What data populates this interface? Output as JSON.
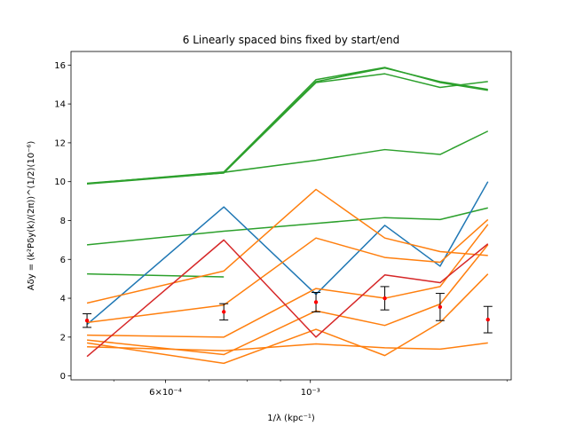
{
  "chart_data": {
    "type": "line",
    "title": "6 Linearly spaced bins fixed by start/end",
    "xlabel": "1/λ (kpc⁻¹)",
    "ylabel": "Aδy = (k²Pδy(k)/(2π))^(1/2)(10⁻⁶)",
    "xscale": "log",
    "xlim": [
      0.00043,
      0.00203
    ],
    "ylim": [
      -0.2,
      16.7
    ],
    "grid": false,
    "x": [
      0.000455,
      0.000737,
      0.00102,
      0.0013,
      0.00158,
      0.00187
    ],
    "x_ticks": [
      {
        "value": 0.0006,
        "label": "6×10⁻⁴"
      },
      {
        "value": 0.001,
        "label": "10⁻³"
      }
    ],
    "y_ticks": [
      0,
      2,
      4,
      6,
      8,
      10,
      12,
      14,
      16
    ],
    "series": [
      {
        "color": "#2ca02c",
        "values": [
          9.9,
          10.5,
          15.25,
          15.88,
          15.1,
          14.7
        ]
      },
      {
        "color": "#2ca02c",
        "values": [
          9.92,
          10.45,
          15.15,
          15.85,
          15.15,
          14.75
        ]
      },
      {
        "color": "#2ca02c",
        "values": [
          9.88,
          10.45,
          15.1,
          15.55,
          14.85,
          15.15
        ]
      },
      {
        "color": "#2ca02c",
        "values": [
          9.9,
          10.48,
          11.1,
          11.65,
          11.4,
          12.6
        ]
      },
      {
        "color": "#2ca02c",
        "values": [
          6.75,
          7.45,
          7.85,
          8.15,
          8.05,
          8.65
        ]
      },
      {
        "color": "#2ca02c",
        "values": [
          5.25,
          5.1,
          null,
          null,
          null,
          null
        ]
      },
      {
        "color": "#1f77b4",
        "values": [
          2.65,
          8.7,
          4.2,
          7.75,
          5.65,
          10.0
        ]
      },
      {
        "color": "#ff7f0e",
        "values": [
          3.75,
          5.4,
          9.6,
          7.1,
          6.4,
          6.2
        ]
      },
      {
        "color": "#ff7f0e",
        "values": [
          2.75,
          3.65,
          7.1,
          6.1,
          5.85,
          8.05
        ]
      },
      {
        "color": "#ff7f0e",
        "values": [
          2.1,
          2.0,
          4.5,
          4.0,
          4.6,
          7.8
        ]
      },
      {
        "color": "#ff7f0e",
        "values": [
          1.85,
          1.1,
          3.35,
          2.6,
          3.7,
          6.75
        ]
      },
      {
        "color": "#ff7f0e",
        "values": [
          1.7,
          0.65,
          2.4,
          1.05,
          2.75,
          5.25
        ]
      },
      {
        "color": "#ff7f0e",
        "values": [
          1.5,
          1.3,
          1.65,
          1.45,
          1.38,
          1.7
        ]
      },
      {
        "color": "#d62728",
        "values": [
          1.0,
          7.0,
          2.0,
          5.2,
          4.8,
          6.8
        ]
      }
    ],
    "error_points": {
      "color": "#ff0000",
      "values": [
        2.85,
        3.3,
        3.8,
        4.0,
        3.55,
        2.9
      ],
      "errors": [
        0.35,
        0.42,
        0.5,
        0.6,
        0.7,
        0.68
      ]
    }
  }
}
